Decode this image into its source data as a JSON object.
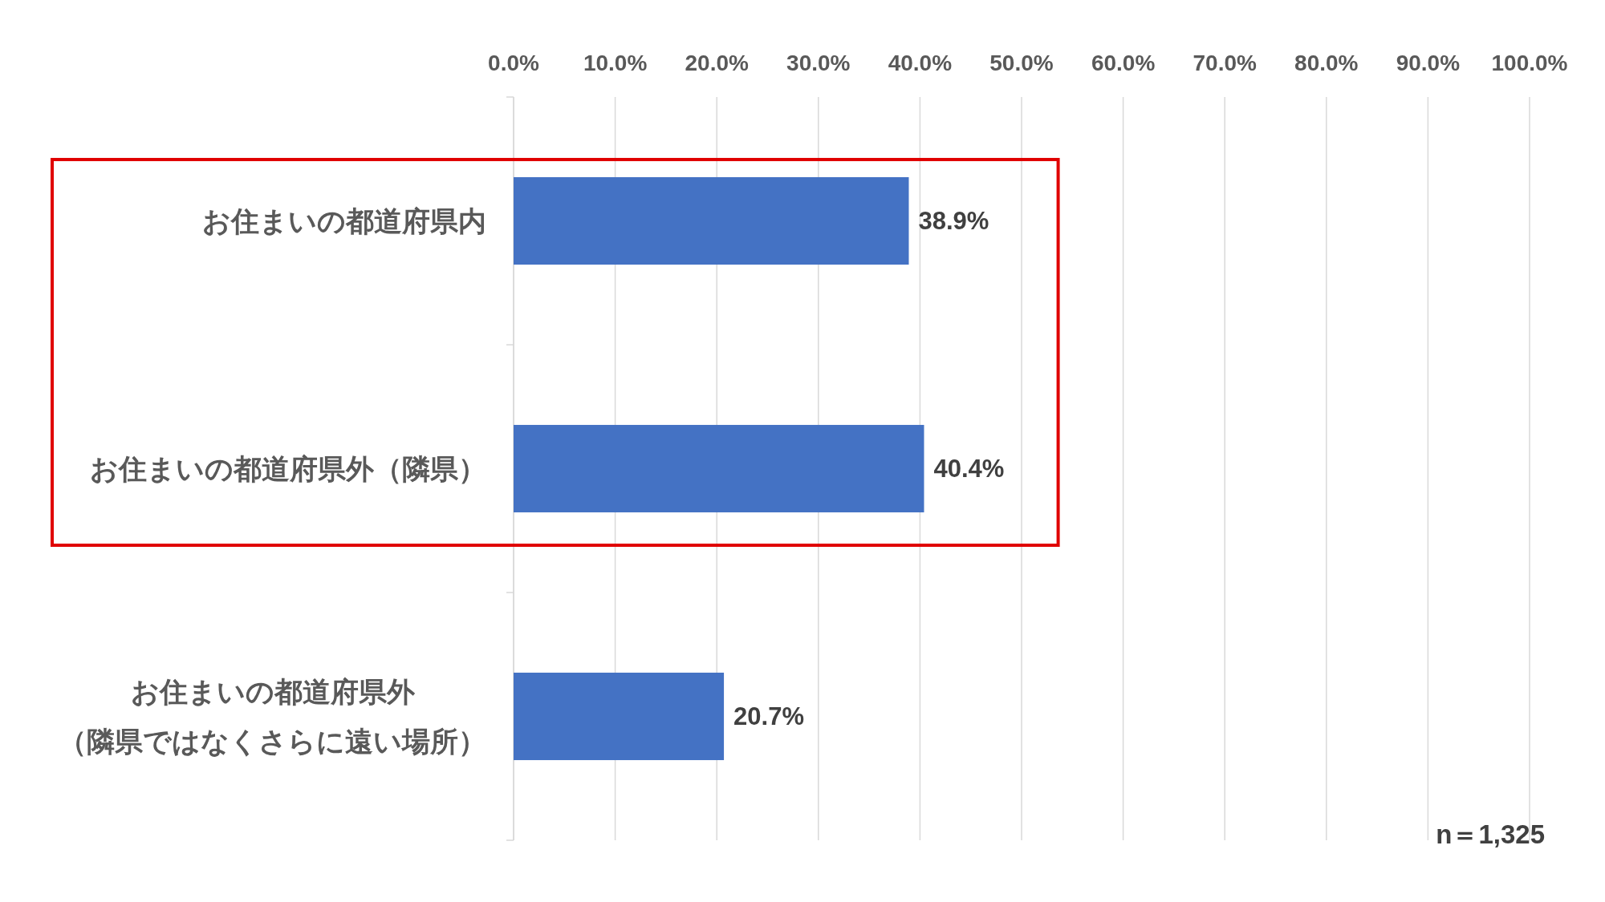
{
  "chart_data": {
    "type": "bar",
    "orientation": "horizontal",
    "categories": [
      "お住まいの都道府県内",
      "お住まいの都道府県外（隣県）",
      "お住まいの都道府県外（隣県ではなくさらに遠い場所）"
    ],
    "values": [
      38.9,
      40.4,
      20.7
    ],
    "color": "#4472c4",
    "value_labels": [
      "38.9%",
      "40.4%",
      "20.7%"
    ],
    "xlim": [
      0,
      100
    ],
    "xticks": [
      {
        "value": 0,
        "label": "0.0%"
      },
      {
        "value": 10,
        "label": "10.0%"
      },
      {
        "value": 20,
        "label": "20.0%"
      },
      {
        "value": 30,
        "label": "30.0%"
      },
      {
        "value": 40,
        "label": "40.0%"
      },
      {
        "value": 50,
        "label": "50.0%"
      },
      {
        "value": 60,
        "label": "60.0%"
      },
      {
        "value": 70,
        "label": "70.0%"
      },
      {
        "value": 80,
        "label": "80.0%"
      },
      {
        "value": 90,
        "label": "90.0%"
      },
      {
        "value": 100,
        "label": "100.0%"
      }
    ],
    "grid": "x",
    "annotations": [
      "n＝1,325"
    ]
  }
}
